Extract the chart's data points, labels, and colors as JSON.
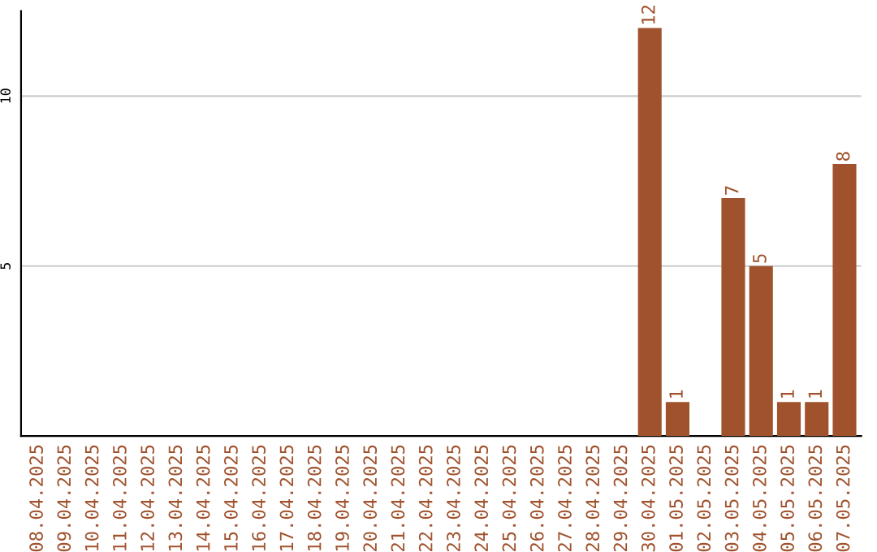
{
  "chart_data": {
    "type": "bar",
    "categories": [
      "08.04.2025",
      "09.04.2025",
      "10.04.2025",
      "11.04.2025",
      "12.04.2025",
      "13.04.2025",
      "14.04.2025",
      "15.04.2025",
      "16.04.2025",
      "17.04.2025",
      "18.04.2025",
      "19.04.2025",
      "20.04.2025",
      "21.04.2025",
      "22.04.2025",
      "23.04.2025",
      "24.04.2025",
      "25.04.2025",
      "26.04.2025",
      "27.04.2025",
      "28.04.2025",
      "29.04.2025",
      "30.04.2025",
      "01.05.2025",
      "02.05.2025",
      "03.05.2025",
      "04.05.2025",
      "05.05.2025",
      "06.05.2025",
      "07.05.2025"
    ],
    "values": [
      0,
      0,
      0,
      0,
      0,
      0,
      0,
      0,
      0,
      0,
      0,
      0,
      0,
      0,
      0,
      0,
      0,
      0,
      0,
      0,
      0,
      0,
      12,
      1,
      0,
      7,
      5,
      1,
      1,
      8
    ],
    "value_labels": [
      null,
      null,
      null,
      null,
      null,
      null,
      null,
      null,
      null,
      null,
      null,
      null,
      null,
      null,
      null,
      null,
      null,
      null,
      null,
      null,
      null,
      null,
      "12",
      "1",
      null,
      "7",
      "5",
      "1",
      "1",
      "8"
    ],
    "color": "#a0522d",
    "ylim": [
      0,
      12.5
    ],
    "yticks": [
      5,
      10
    ],
    "grid": "y"
  }
}
